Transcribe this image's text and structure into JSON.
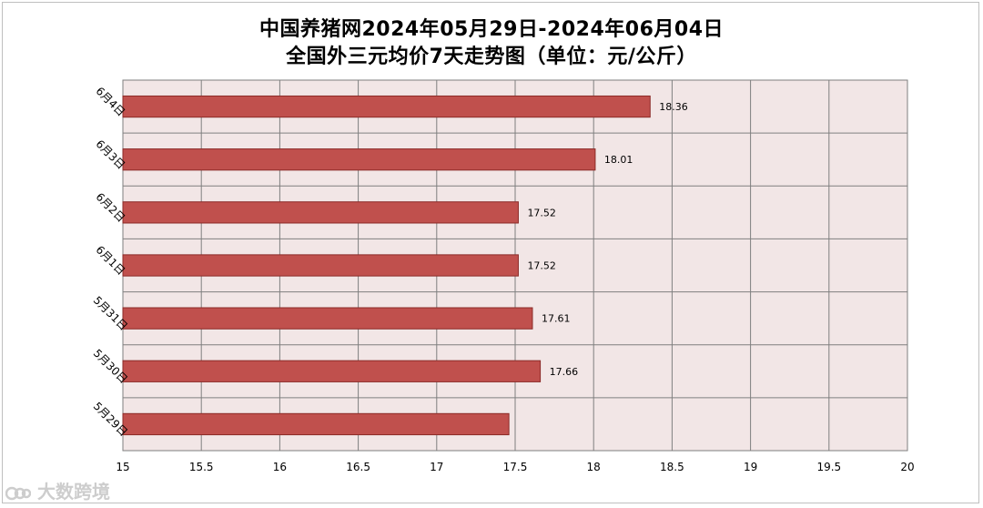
{
  "chart_data": {
    "type": "bar",
    "orientation": "horizontal",
    "title": "中国养猪网2024年05月29日-2024年06月04日",
    "subtitle": "全国外三元均价7天走势图（单位：元/公斤）",
    "categories": [
      "6月4日",
      "6月3日",
      "6月2日",
      "6月1日",
      "5月31日",
      "5月30日",
      "5月29日"
    ],
    "values": [
      18.36,
      18.01,
      17.52,
      17.52,
      17.61,
      17.66,
      17.46
    ],
    "data_labels": [
      "18.36",
      "18.01",
      "17.52",
      "17.52",
      "17.61",
      "17.66",
      ""
    ],
    "xlim": [
      15,
      20
    ],
    "x_ticks": [
      "15",
      "15.5",
      "16",
      "16.5",
      "17",
      "17.5",
      "18",
      "18.5",
      "19",
      "19.5",
      "20"
    ],
    "grid": true,
    "bar_color": "#c0504d",
    "bar_border_color": "#8b2a27",
    "plot_background": "#f2e6e6",
    "grid_color": "#7f7f7f"
  },
  "watermark": {
    "text": "大数跨境",
    "icon": "logo-icon"
  }
}
